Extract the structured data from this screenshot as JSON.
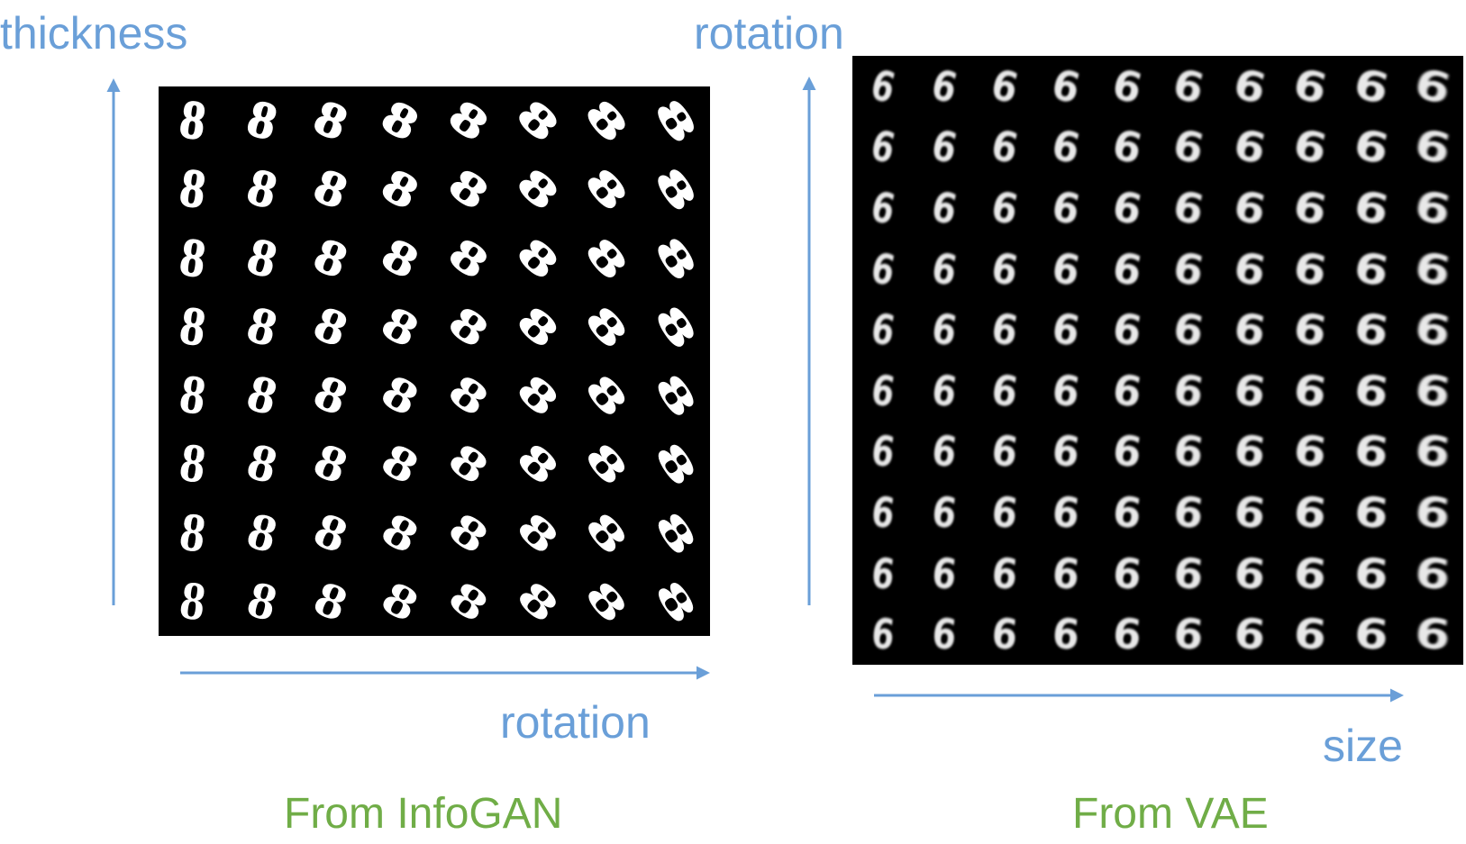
{
  "colors": {
    "axis": "#6a9fd8",
    "caption": "#70ad47",
    "panel": "#000000",
    "digit": "#ffffff"
  },
  "left": {
    "vertical_axis_label": "thickness",
    "horizontal_axis_label": "rotation",
    "caption": "From InfoGAN",
    "digit": "8",
    "rows": 8,
    "cols": 8
  },
  "right": {
    "vertical_axis_label": "rotation",
    "horizontal_axis_label": "size",
    "caption": "From VAE",
    "digit": "6",
    "rows": 10,
    "cols": 10
  }
}
